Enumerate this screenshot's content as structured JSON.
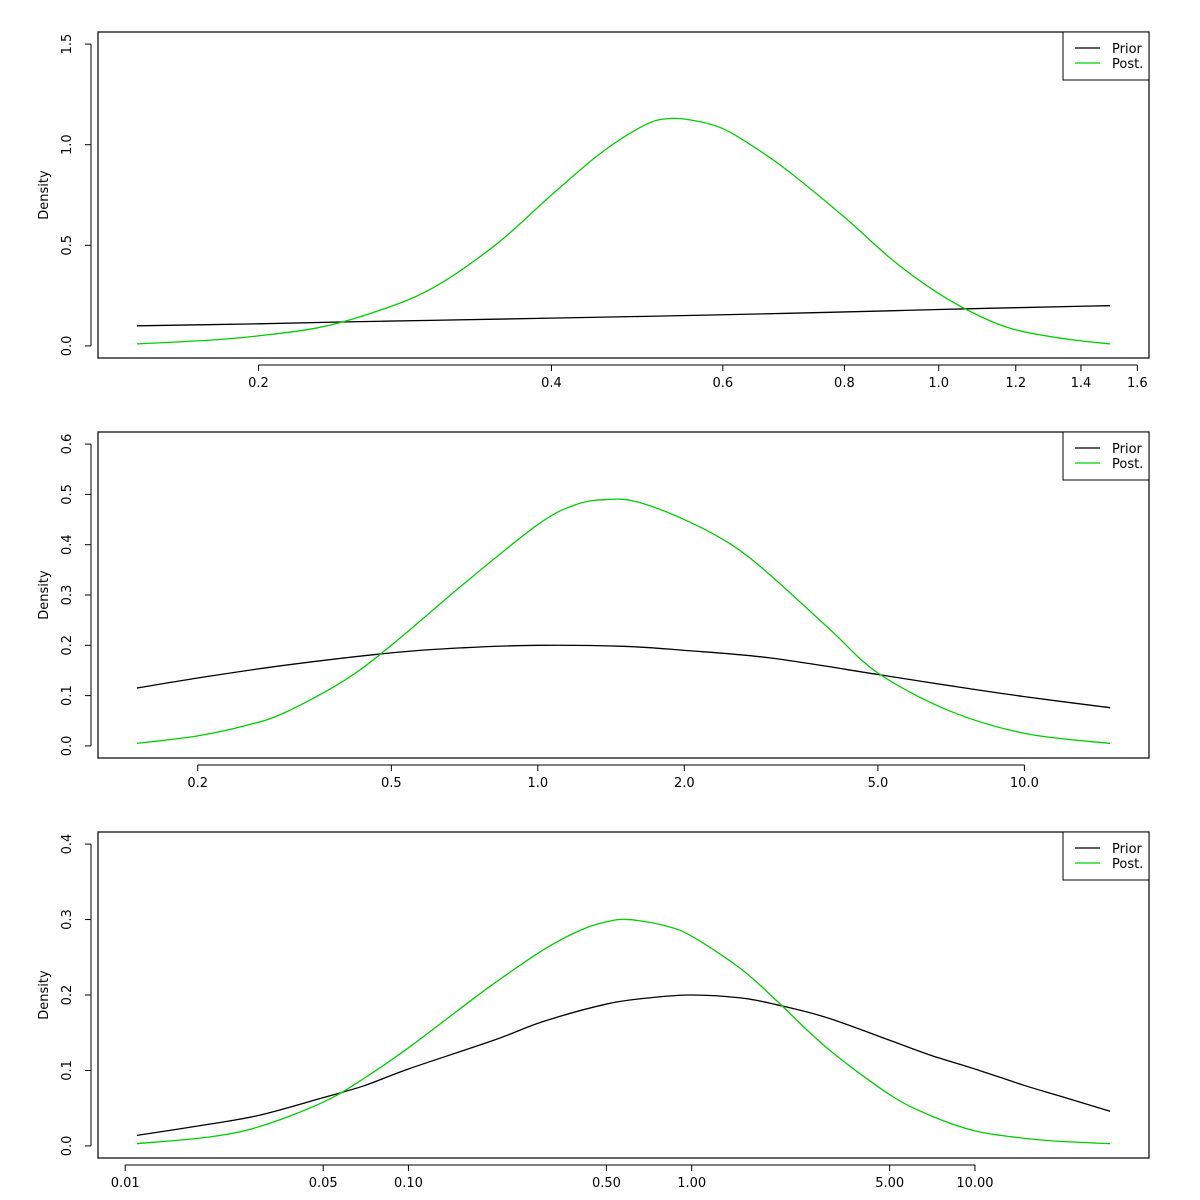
{
  "chart_data": [
    {
      "type": "line",
      "x_scale": "log",
      "xlim": [
        0.15,
        1.5
      ],
      "ylim": [
        0,
        1.5
      ],
      "ylabel": "Density",
      "xticks": [
        0.2,
        0.4,
        0.6,
        0.8,
        1.0,
        1.2,
        1.4,
        1.6
      ],
      "xtick_labels": [
        "0.2",
        "0.4",
        "0.6",
        "0.8",
        "1.0",
        "1.2",
        "1.4",
        "1.6"
      ],
      "yticks": [
        0,
        0.5,
        1.0,
        1.5
      ],
      "ytick_labels": [
        "0.0",
        "0.5",
        "1.0",
        "1.5"
      ],
      "legend": {
        "position": "top-right",
        "entries": [
          "Prior",
          "Post."
        ]
      },
      "series": [
        {
          "name": "Prior",
          "color": "#000000",
          "x": [
            0.15,
            0.2,
            0.25,
            0.3,
            0.4,
            0.5,
            0.6,
            0.7,
            0.8,
            0.9,
            1.0,
            1.2,
            1.4,
            1.5
          ],
          "y": [
            0.1,
            0.11,
            0.12,
            0.127,
            0.138,
            0.147,
            0.155,
            0.162,
            0.169,
            0.175,
            0.181,
            0.19,
            0.197,
            0.2
          ]
        },
        {
          "name": "Post.",
          "color": "#00cd00",
          "x": [
            0.15,
            0.18,
            0.2,
            0.23,
            0.26,
            0.3,
            0.35,
            0.4,
            0.45,
            0.5,
            0.53,
            0.56,
            0.6,
            0.65,
            0.7,
            0.8,
            0.9,
            1.0,
            1.1,
            1.2,
            1.35,
            1.5
          ],
          "y": [
            0.01,
            0.03,
            0.05,
            0.09,
            0.16,
            0.28,
            0.5,
            0.75,
            0.96,
            1.1,
            1.13,
            1.12,
            1.08,
            0.98,
            0.87,
            0.64,
            0.42,
            0.26,
            0.15,
            0.08,
            0.035,
            0.01
          ]
        }
      ]
    },
    {
      "type": "line",
      "x_scale": "log",
      "xlim": [
        0.15,
        15
      ],
      "ylim": [
        0,
        0.6
      ],
      "ylabel": "Density",
      "xticks": [
        0.2,
        0.5,
        1.0,
        2.0,
        5.0,
        10.0
      ],
      "xtick_labels": [
        "0.2",
        "0.5",
        "1.0",
        "2.0",
        "5.0",
        "10.0"
      ],
      "yticks": [
        0,
        0.1,
        0.2,
        0.3,
        0.4,
        0.5,
        0.6
      ],
      "ytick_labels": [
        "0.0",
        "0.1",
        "0.2",
        "0.3",
        "0.4",
        "0.5",
        "0.6"
      ],
      "legend": {
        "position": "top-right",
        "entries": [
          "Prior",
          "Post."
        ]
      },
      "series": [
        {
          "name": "Prior",
          "color": "#000000",
          "x": [
            0.15,
            0.2,
            0.3,
            0.5,
            0.7,
            1.0,
            1.5,
            2.0,
            3.0,
            5.0,
            7.0,
            10.0,
            15.0
          ],
          "y": [
            0.115,
            0.135,
            0.16,
            0.185,
            0.195,
            0.2,
            0.198,
            0.19,
            0.175,
            0.142,
            0.12,
            0.098,
            0.076
          ]
        },
        {
          "name": "Post.",
          "color": "#00cd00",
          "x": [
            0.15,
            0.2,
            0.25,
            0.3,
            0.4,
            0.5,
            0.7,
            1.0,
            1.2,
            1.4,
            1.6,
            2.0,
            2.5,
            3.0,
            4.0,
            5.0,
            7.0,
            10.0,
            15.0
          ],
          "y": [
            0.005,
            0.02,
            0.04,
            0.065,
            0.13,
            0.2,
            0.32,
            0.44,
            0.48,
            0.49,
            0.485,
            0.45,
            0.4,
            0.34,
            0.23,
            0.145,
            0.07,
            0.025,
            0.005
          ]
        }
      ]
    },
    {
      "type": "line",
      "x_scale": "log",
      "xlim": [
        0.011,
        30
      ],
      "ylim": [
        0,
        0.4
      ],
      "ylabel": "Density",
      "xticks": [
        0.01,
        0.05,
        0.1,
        0.5,
        1.0,
        5.0,
        10.0
      ],
      "xtick_labels": [
        "0.01",
        "0.05",
        "0.10",
        "0.50",
        "1.00",
        "5.00",
        "10.00"
      ],
      "yticks": [
        0,
        0.1,
        0.2,
        0.3,
        0.4
      ],
      "ytick_labels": [
        "0.0",
        "0.1",
        "0.2",
        "0.3",
        "0.4"
      ],
      "legend": {
        "position": "top-right",
        "entries": [
          "Prior",
          "Post."
        ]
      },
      "series": [
        {
          "name": "Prior",
          "color": "#000000",
          "x": [
            0.011,
            0.02,
            0.03,
            0.05,
            0.07,
            0.1,
            0.2,
            0.3,
            0.5,
            0.7,
            1.0,
            1.5,
            2.0,
            3.0,
            5.0,
            7.0,
            10.0,
            15.0,
            20.0,
            30.0
          ],
          "y": [
            0.014,
            0.029,
            0.041,
            0.064,
            0.08,
            0.102,
            0.14,
            0.165,
            0.188,
            0.196,
            0.2,
            0.196,
            0.187,
            0.17,
            0.14,
            0.12,
            0.102,
            0.08,
            0.066,
            0.046
          ]
        },
        {
          "name": "Post.",
          "color": "#00cd00",
          "x": [
            0.011,
            0.02,
            0.03,
            0.05,
            0.07,
            0.1,
            0.15,
            0.2,
            0.3,
            0.4,
            0.5,
            0.6,
            0.8,
            1.0,
            1.5,
            2.0,
            3.0,
            5.0,
            7.0,
            10.0,
            15.0,
            20.0,
            30.0
          ],
          "y": [
            0.003,
            0.012,
            0.026,
            0.058,
            0.09,
            0.13,
            0.18,
            0.215,
            0.26,
            0.285,
            0.297,
            0.3,
            0.292,
            0.278,
            0.234,
            0.192,
            0.13,
            0.068,
            0.04,
            0.02,
            0.01,
            0.006,
            0.003
          ]
        }
      ]
    }
  ]
}
